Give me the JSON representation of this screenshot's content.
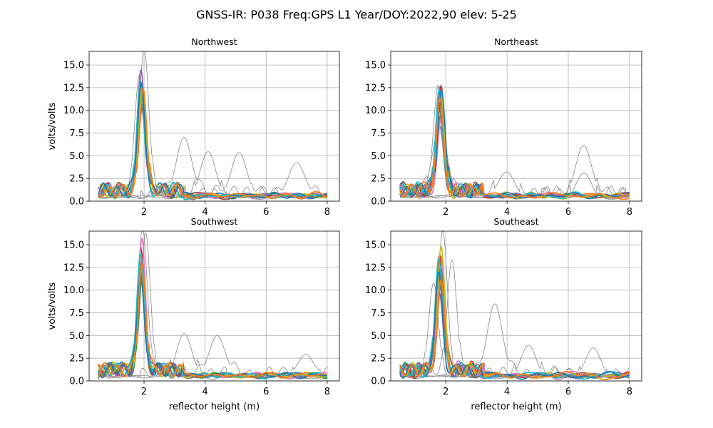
{
  "chart_data": {
    "type": "line",
    "title": "GNSS-IR: P038 Freq:GPS L1 Year/DOY:2022,90 elev: 5-25",
    "xlabel": "reflector height (m)",
    "ylabel": "volts/volts",
    "xlim": [
      0.2,
      8.4
    ],
    "ylim": [
      0,
      16.5
    ],
    "xticks": [
      2,
      4,
      6,
      8
    ],
    "yticks": [
      0.0,
      2.5,
      5.0,
      7.5,
      10.0,
      12.5,
      15.0
    ],
    "xtick_labels": [
      "2",
      "4",
      "6",
      "8"
    ],
    "ytick_labels": [
      "0.0",
      "2.5",
      "5.0",
      "7.5",
      "10.0",
      "12.5",
      "15.0"
    ],
    "grid": true,
    "series_colors": [
      "#1f77b4",
      "#ff7f0e",
      "#2ca02c",
      "#d62728",
      "#9467bd",
      "#8c564b",
      "#e377c2",
      "#7f7f7f",
      "#bcbd22",
      "#17becf"
    ],
    "rejected_color": "#888888",
    "panels": [
      {
        "title": "Northwest",
        "peak_x": 1.92,
        "peak_values": [
          12.3,
          10.6,
          11.2,
          9.8,
          14.1,
          10.0,
          11.5,
          10.4,
          11.9,
          12.1,
          12.5,
          11.8
        ],
        "rejected_peaks": [
          {
            "x": 2.0,
            "peak": 16.3
          },
          {
            "x": 1.85,
            "peak": 13.5
          },
          {
            "x": 3.3,
            "peak": 6.7
          },
          {
            "x": 4.1,
            "peak": 4.9
          },
          {
            "x": 5.1,
            "peak": 5.0
          },
          {
            "x": 7.0,
            "peak": 3.9
          }
        ]
      },
      {
        "title": "Northeast",
        "peak_x": 1.82,
        "peak_values": [
          12.3,
          10.2,
          9.0,
          11.8,
          7.5,
          10.5,
          8.7,
          9.5,
          11.0,
          12.1,
          11.5,
          10.8
        ],
        "rejected_peaks": [
          {
            "x": 1.8,
            "peak": 7.6
          },
          {
            "x": 1.75,
            "peak": 12.2
          },
          {
            "x": 6.5,
            "peak": 5.8
          },
          {
            "x": 4.0,
            "peak": 2.7
          },
          {
            "x": 6.5,
            "peak": 2.4
          }
        ]
      },
      {
        "title": "Southwest",
        "peak_x": 1.92,
        "peak_values": [
          12.0,
          11.5,
          11.2,
          14.0,
          12.5,
          10.5,
          15.0,
          12.8,
          11.8,
          13.2,
          10.8,
          12.2
        ],
        "rejected_peaks": [
          {
            "x": 1.95,
            "peak": 16.4
          },
          {
            "x": 2.05,
            "peak": 15.8
          },
          {
            "x": 4.4,
            "peak": 4.5
          },
          {
            "x": 3.3,
            "peak": 4.6
          },
          {
            "x": 7.3,
            "peak": 2.6
          }
        ]
      },
      {
        "title": "Southeast",
        "peak_x": 1.82,
        "peak_values": [
          10.5,
          13.2,
          12.0,
          13.5,
          9.0,
          11.0,
          12.5,
          11.8,
          14.2,
          12.8,
          11.2,
          10.8
        ],
        "rejected_peaks": [
          {
            "x": 1.9,
            "peak": 15.8
          },
          {
            "x": 2.2,
            "peak": 12.9
          },
          {
            "x": 1.6,
            "peak": 10.2
          },
          {
            "x": 3.6,
            "peak": 8.0
          },
          {
            "x": 4.7,
            "peak": 3.3
          },
          {
            "x": 6.8,
            "peak": 2.9
          }
        ]
      }
    ]
  }
}
